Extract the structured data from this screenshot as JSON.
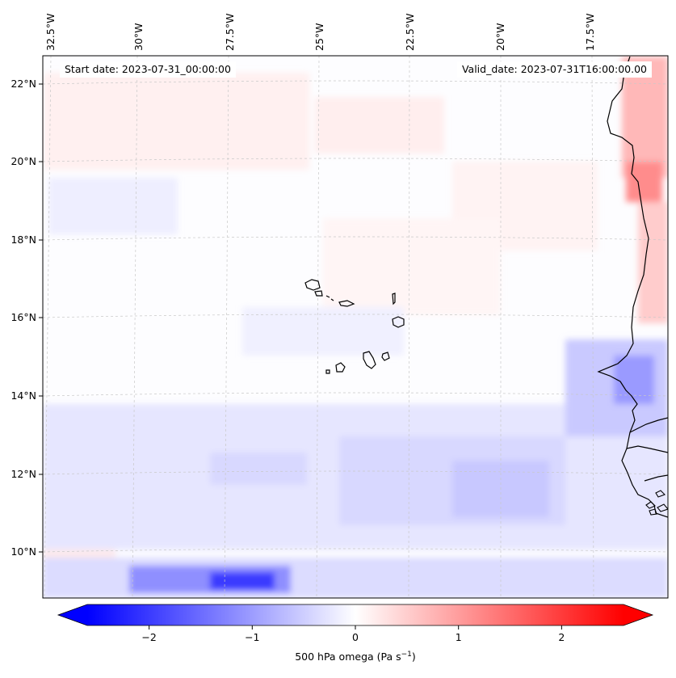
{
  "map": {
    "start_date": "Start date: 2023-07-31_00:00:00",
    "valid_date": "Valid_date: 2023-07-31T16:00:00.00",
    "lon_ticks": [
      "32.5°W",
      "30°W",
      "27.5°W",
      "25°W",
      "22.5°W",
      "20°W",
      "17.5°W"
    ],
    "lat_ticks": [
      "22°N",
      "20°N",
      "18°N",
      "16°N",
      "14°N",
      "12°N",
      "10°N"
    ],
    "colorbar": {
      "label_prefix": "500 hPa omega (Pa s",
      "label_exponent": "−1",
      "label_suffix": ")",
      "ticks": [
        "−2",
        "−1",
        "0",
        "1",
        "2"
      ],
      "min": -2.6,
      "max": 2.6,
      "tick_values": [
        -2,
        -1,
        0,
        1,
        2
      ],
      "colors": {
        "negative": "#0000ff",
        "zero": "#ffffff",
        "positive": "#ff0000"
      }
    }
  }
}
